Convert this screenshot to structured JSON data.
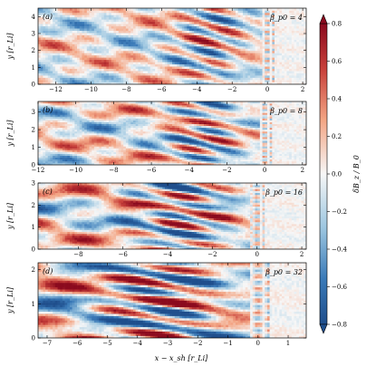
{
  "chart_data": {
    "type": "heatmap",
    "xlabel": "x − x_sh [r_Li]",
    "ylabel": "y [r_Li]",
    "colorbar": {
      "label": "δB_z / B_0",
      "ticks": [
        -0.8,
        -0.6,
        -0.4,
        -0.2,
        0.0,
        0.2,
        0.4,
        0.6,
        0.8
      ],
      "range": [
        -0.8,
        0.8
      ],
      "colormap": "RdBu_r",
      "colors": {
        "negative": "#1f4e8c",
        "zero": "#f7f7f7",
        "positive": "#8b0a1e"
      }
    },
    "panels": [
      {
        "tag": "(a)",
        "beta_label": "β_p0 = 4",
        "beta": 4,
        "xlim": [
          -13,
          2.2
        ],
        "ylim": [
          0,
          4.5
        ],
        "xticks": [
          -12,
          -10,
          -8,
          -6,
          -4,
          -2,
          0,
          2
        ],
        "yticks": [
          0,
          1,
          2,
          3,
          4
        ],
        "xtick_labels": [
          "−12",
          "−10",
          "−8",
          "−6",
          "−4",
          "−2",
          "0",
          "2"
        ],
        "ytick_labels": [
          "0",
          "1",
          "2",
          "3",
          "4"
        ]
      },
      {
        "tag": "(b)",
        "beta_label": "β_p0 = 8",
        "beta": 8,
        "xlim": [
          -12,
          2.2
        ],
        "ylim": [
          0,
          3.6
        ],
        "xticks": [
          -12,
          -10,
          -8,
          -6,
          -4,
          -2,
          0,
          2
        ],
        "yticks": [
          0,
          1,
          2,
          3
        ],
        "xtick_labels": [
          "−12",
          "−10",
          "−8",
          "−6",
          "−4",
          "−2",
          "0",
          "2"
        ],
        "ytick_labels": [
          "0",
          "1",
          "2",
          "3"
        ]
      },
      {
        "tag": "(c)",
        "beta_label": "β_p0 = 16",
        "beta": 16,
        "xlim": [
          -9.8,
          2.2
        ],
        "ylim": [
          0,
          3
        ],
        "xticks": [
          -8,
          -6,
          -4,
          -2,
          0,
          2
        ],
        "yticks": [
          0,
          1,
          2,
          3
        ],
        "xtick_labels": [
          "−8",
          "−6",
          "−4",
          "−2",
          "0",
          "2"
        ],
        "ytick_labels": [
          "0",
          "1",
          "2",
          "3"
        ]
      },
      {
        "tag": "(d)",
        "beta_label": "β_p0 = 32",
        "beta": 32,
        "xlim": [
          -7.3,
          1.6
        ],
        "ylim": [
          0,
          2.2
        ],
        "xticks": [
          -7,
          -6,
          -5,
          -4,
          -3,
          -2,
          -1,
          0,
          1
        ],
        "yticks": [
          0,
          1,
          2
        ],
        "xtick_labels": [
          "−7",
          "−6",
          "−5",
          "−4",
          "−3",
          "−2",
          "−1",
          "0",
          "1"
        ],
        "ytick_labels": [
          "0",
          "1",
          "2"
        ]
      }
    ]
  }
}
